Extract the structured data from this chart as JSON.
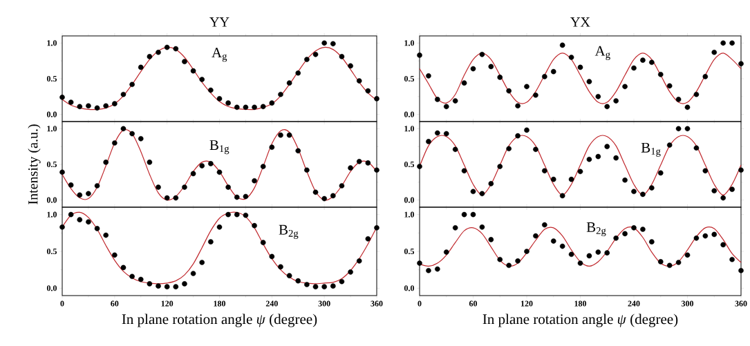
{
  "chart_data": [
    {
      "type": "scatter",
      "title": "YY",
      "annotations": [
        "A$_{g}$"
      ],
      "xlim": [
        0,
        360
      ],
      "xticks": [
        0,
        60,
        120,
        180,
        240,
        300,
        360
      ],
      "ylim": [
        -0.1,
        1.1
      ],
      "yticks": [
        {
          "value": 0,
          "label": "0.0"
        },
        {
          "value": 0.5,
          "label": "0.5"
        },
        {
          "value": 1,
          "label": "1.0"
        }
      ],
      "tick_labels": "y",
      "x": [
        0,
        10,
        20,
        30,
        40,
        50,
        60,
        70,
        80,
        90,
        100,
        110,
        120,
        130,
        140,
        150,
        160,
        170,
        180,
        190,
        200,
        210,
        220,
        230,
        240,
        250,
        260,
        270,
        280,
        290,
        300,
        310,
        320,
        330,
        340,
        350,
        360
      ],
      "series": [
        {
          "marker": "circle",
          "color": "#000000",
          "values": [
            0.24,
            0.17,
            0.11,
            0.12,
            0.09,
            0.12,
            0.15,
            0.28,
            0.42,
            0.66,
            0.81,
            0.87,
            0.94,
            0.92,
            0.74,
            0.61,
            0.49,
            0.34,
            0.22,
            0.16,
            0.1,
            0.1,
            0.1,
            0.11,
            0.16,
            0.28,
            0.44,
            0.58,
            0.77,
            0.84,
            1.0,
            0.99,
            0.81,
            0.68,
            0.47,
            0.33,
            0.22
          ]
        },
        {
          "type": "line",
          "color": "#c0282d",
          "values": [
            0.21,
            0.13,
            0.09,
            0.07,
            0.07,
            0.09,
            0.15,
            0.26,
            0.42,
            0.6,
            0.77,
            0.89,
            0.94,
            0.91,
            0.8,
            0.63,
            0.45,
            0.3,
            0.18,
            0.11,
            0.08,
            0.07,
            0.07,
            0.1,
            0.15,
            0.26,
            0.42,
            0.6,
            0.77,
            0.89,
            0.94,
            0.91,
            0.8,
            0.63,
            0.45,
            0.3,
            0.2
          ]
        }
      ]
    },
    {
      "type": "scatter",
      "ylabel": "Intensity (a.u.)",
      "annotations": [
        "B$_{1g}$"
      ],
      "xlim": [
        0,
        360
      ],
      "xticks": [
        0,
        60,
        120,
        180,
        240,
        300,
        360
      ],
      "ylim": [
        -0.1,
        1.1
      ],
      "yticks": [
        {
          "value": 0,
          "label": "0.0"
        },
        {
          "value": 0.5,
          "label": "0.5"
        },
        {
          "value": 1,
          "label": "1.0"
        }
      ],
      "tick_labels": "y",
      "x": [
        0,
        10,
        20,
        30,
        40,
        50,
        60,
        70,
        80,
        90,
        100,
        110,
        120,
        130,
        140,
        150,
        160,
        170,
        180,
        190,
        200,
        210,
        220,
        230,
        240,
        250,
        260,
        270,
        280,
        290,
        300,
        310,
        320,
        330,
        340,
        350,
        360
      ],
      "series": [
        {
          "marker": "circle",
          "color": "#000000",
          "values": [
            0.39,
            0.21,
            0.07,
            0.09,
            0.2,
            0.53,
            0.8,
            1.0,
            0.93,
            0.86,
            0.53,
            0.18,
            0.03,
            0.03,
            0.18,
            0.37,
            0.48,
            0.51,
            0.39,
            0.18,
            0.04,
            0.05,
            0.27,
            0.47,
            0.74,
            0.91,
            0.91,
            0.69,
            0.42,
            0.11,
            0.02,
            0.06,
            0.2,
            0.45,
            0.54,
            0.52,
            0.42
          ]
        },
        {
          "type": "line",
          "color": "#c0282d",
          "values": [
            0.36,
            0.16,
            0.03,
            0.02,
            0.18,
            0.48,
            0.8,
            0.98,
            0.93,
            0.68,
            0.36,
            0.1,
            0.0,
            0.05,
            0.2,
            0.4,
            0.53,
            0.53,
            0.4,
            0.2,
            0.04,
            0.02,
            0.17,
            0.47,
            0.79,
            0.97,
            0.95,
            0.72,
            0.4,
            0.12,
            0.0,
            0.05,
            0.2,
            0.4,
            0.53,
            0.53,
            0.4
          ]
        }
      ]
    },
    {
      "type": "scatter",
      "xlabel": "In plane rotation angle *ψ* (degree)",
      "annotations": [
        "B$_{2g}$"
      ],
      "xlim": [
        0,
        360
      ],
      "xticks": [
        0,
        60,
        120,
        180,
        240,
        300,
        360
      ],
      "ylim": [
        -0.1,
        1.1
      ],
      "yticks": [
        {
          "value": 0,
          "label": "0.0"
        },
        {
          "value": 0.5,
          "label": "0.5"
        },
        {
          "value": 1,
          "label": "1.0"
        }
      ],
      "x": [
        0,
        10,
        20,
        30,
        40,
        50,
        60,
        70,
        80,
        90,
        100,
        110,
        120,
        130,
        140,
        150,
        160,
        170,
        180,
        190,
        200,
        210,
        220,
        230,
        240,
        250,
        260,
        270,
        280,
        290,
        300,
        310,
        320,
        330,
        340,
        350,
        360
      ],
      "series": [
        {
          "marker": "circle",
          "color": "#000000",
          "values": [
            0.83,
            1.0,
            0.93,
            0.9,
            0.81,
            0.72,
            0.45,
            0.28,
            0.16,
            0.12,
            0.06,
            0.03,
            0.02,
            0.02,
            0.06,
            0.2,
            0.35,
            0.63,
            0.83,
            1.0,
            1.0,
            0.99,
            0.85,
            0.62,
            0.43,
            0.29,
            0.17,
            0.1,
            0.05,
            0.02,
            0.02,
            0.03,
            0.09,
            0.22,
            0.37,
            0.67,
            0.82
          ]
        },
        {
          "type": "line",
          "color": "#c0282d",
          "values": [
            0.83,
            0.99,
            1.03,
            0.96,
            0.8,
            0.58,
            0.38,
            0.23,
            0.14,
            0.09,
            0.07,
            0.06,
            0.07,
            0.1,
            0.18,
            0.33,
            0.55,
            0.78,
            0.95,
            1.02,
            1.03,
            0.97,
            0.82,
            0.6,
            0.4,
            0.25,
            0.15,
            0.09,
            0.07,
            0.06,
            0.07,
            0.08,
            0.13,
            0.24,
            0.4,
            0.6,
            0.83
          ]
        }
      ]
    },
    {
      "type": "scatter",
      "title": "YX",
      "annotations": [
        "A$_{g}$"
      ],
      "xlim": [
        0,
        360
      ],
      "xticks": [
        0,
        60,
        120,
        180,
        240,
        300,
        360
      ],
      "ylim": [
        -0.1,
        1.1
      ],
      "yticks": [
        {
          "value": 0,
          "label": "0.0"
        },
        {
          "value": 0.5,
          "label": "0.5"
        },
        {
          "value": 1,
          "label": "1.0"
        }
      ],
      "tick_labels": "y",
      "x": [
        0,
        10,
        20,
        30,
        40,
        50,
        60,
        70,
        80,
        90,
        100,
        110,
        120,
        130,
        140,
        150,
        160,
        170,
        180,
        190,
        200,
        210,
        220,
        230,
        240,
        250,
        260,
        270,
        280,
        290,
        300,
        310,
        320,
        330,
        340,
        350,
        360
      ],
      "series": [
        {
          "marker": "circle",
          "color": "#000000",
          "values": [
            0.83,
            0.54,
            0.21,
            0.11,
            0.19,
            0.44,
            0.64,
            0.84,
            0.67,
            0.52,
            0.33,
            0.12,
            0.39,
            0.27,
            0.53,
            0.6,
            0.97,
            0.8,
            0.66,
            0.46,
            0.25,
            0.11,
            0.19,
            0.39,
            0.65,
            0.76,
            0.73,
            0.56,
            0.4,
            0.21,
            0.1,
            0.28,
            0.53,
            0.87,
            1.0,
            1.0,
            0.71
          ]
        },
        {
          "type": "line",
          "color": "#c0282d",
          "values": [
            0.64,
            0.43,
            0.22,
            0.16,
            0.28,
            0.55,
            0.77,
            0.86,
            0.77,
            0.55,
            0.32,
            0.17,
            0.17,
            0.32,
            0.55,
            0.77,
            0.86,
            0.77,
            0.55,
            0.32,
            0.17,
            0.17,
            0.32,
            0.55,
            0.77,
            0.86,
            0.77,
            0.55,
            0.32,
            0.17,
            0.17,
            0.32,
            0.55,
            0.77,
            0.86,
            0.77,
            0.64
          ]
        }
      ]
    },
    {
      "type": "scatter",
      "annotations": [
        "B$_{1g}$"
      ],
      "xlim": [
        0,
        360
      ],
      "xticks": [
        0,
        60,
        120,
        180,
        240,
        300,
        360
      ],
      "ylim": [
        -0.1,
        1.1
      ],
      "yticks": [
        {
          "value": 0,
          "label": "0.0"
        },
        {
          "value": 0.5,
          "label": "0.5"
        },
        {
          "value": 1,
          "label": "1.0"
        }
      ],
      "tick_labels": "y",
      "x": [
        0,
        10,
        20,
        30,
        40,
        50,
        60,
        70,
        80,
        90,
        100,
        110,
        120,
        130,
        140,
        150,
        160,
        170,
        180,
        190,
        200,
        210,
        220,
        230,
        240,
        250,
        260,
        270,
        280,
        290,
        300,
        310,
        320,
        330,
        340,
        350,
        360
      ],
      "series": [
        {
          "marker": "circle",
          "color": "#000000",
          "values": [
            0.47,
            0.82,
            0.94,
            0.93,
            0.71,
            0.41,
            0.12,
            0.09,
            0.23,
            0.47,
            0.72,
            0.9,
            0.98,
            0.71,
            0.41,
            0.29,
            0.06,
            0.29,
            0.4,
            0.57,
            0.61,
            0.75,
            0.59,
            0.28,
            0.12,
            0.08,
            0.17,
            0.38,
            0.77,
            1.0,
            1.0,
            0.73,
            0.41,
            0.13,
            0.03,
            0.15,
            0.42
          ]
        },
        {
          "type": "line",
          "color": "#c0282d",
          "values": [
            0.47,
            0.76,
            0.89,
            0.89,
            0.76,
            0.49,
            0.22,
            0.07,
            0.22,
            0.49,
            0.76,
            0.89,
            0.89,
            0.76,
            0.49,
            0.22,
            0.07,
            0.22,
            0.49,
            0.76,
            0.89,
            0.89,
            0.76,
            0.49,
            0.22,
            0.07,
            0.22,
            0.49,
            0.76,
            0.89,
            0.89,
            0.76,
            0.49,
            0.22,
            0.07,
            0.22,
            0.49
          ]
        }
      ]
    },
    {
      "type": "scatter",
      "xlabel": "In plane rotation angle *ψ* (degree)",
      "annotations": [
        "B$_{2g}$"
      ],
      "xlim": [
        0,
        360
      ],
      "xticks": [
        0,
        60,
        120,
        180,
        240,
        300,
        360
      ],
      "ylim": [
        -0.1,
        1.1
      ],
      "yticks": [
        {
          "value": 0,
          "label": "0.0"
        },
        {
          "value": 0.5,
          "label": "0.5"
        },
        {
          "value": 1,
          "label": "1.0"
        }
      ],
      "x": [
        0,
        10,
        20,
        30,
        40,
        50,
        60,
        70,
        80,
        90,
        100,
        110,
        120,
        130,
        140,
        150,
        160,
        170,
        180,
        190,
        200,
        210,
        220,
        230,
        240,
        250,
        260,
        270,
        280,
        290,
        300,
        310,
        320,
        330,
        340,
        350,
        360
      ],
      "series": [
        {
          "marker": "circle",
          "color": "#000000",
          "values": [
            0.34,
            0.24,
            0.26,
            0.49,
            0.82,
            1.0,
            1.0,
            0.83,
            0.66,
            0.39,
            0.31,
            0.37,
            0.5,
            0.71,
            0.86,
            0.64,
            0.57,
            0.46,
            0.34,
            0.44,
            0.49,
            0.48,
            0.68,
            0.74,
            0.82,
            0.8,
            0.63,
            0.36,
            0.31,
            0.35,
            0.45,
            0.68,
            0.71,
            0.73,
            0.59,
            0.39,
            0.24
          ]
        },
        {
          "type": "line",
          "color": "#c0282d",
          "values": [
            0.33,
            0.3,
            0.34,
            0.45,
            0.62,
            0.78,
            0.82,
            0.74,
            0.56,
            0.38,
            0.3,
            0.34,
            0.48,
            0.65,
            0.8,
            0.82,
            0.71,
            0.52,
            0.36,
            0.3,
            0.36,
            0.5,
            0.68,
            0.81,
            0.82,
            0.69,
            0.49,
            0.34,
            0.3,
            0.36,
            0.52,
            0.7,
            0.82,
            0.81,
            0.66,
            0.47,
            0.35
          ]
        }
      ]
    }
  ]
}
